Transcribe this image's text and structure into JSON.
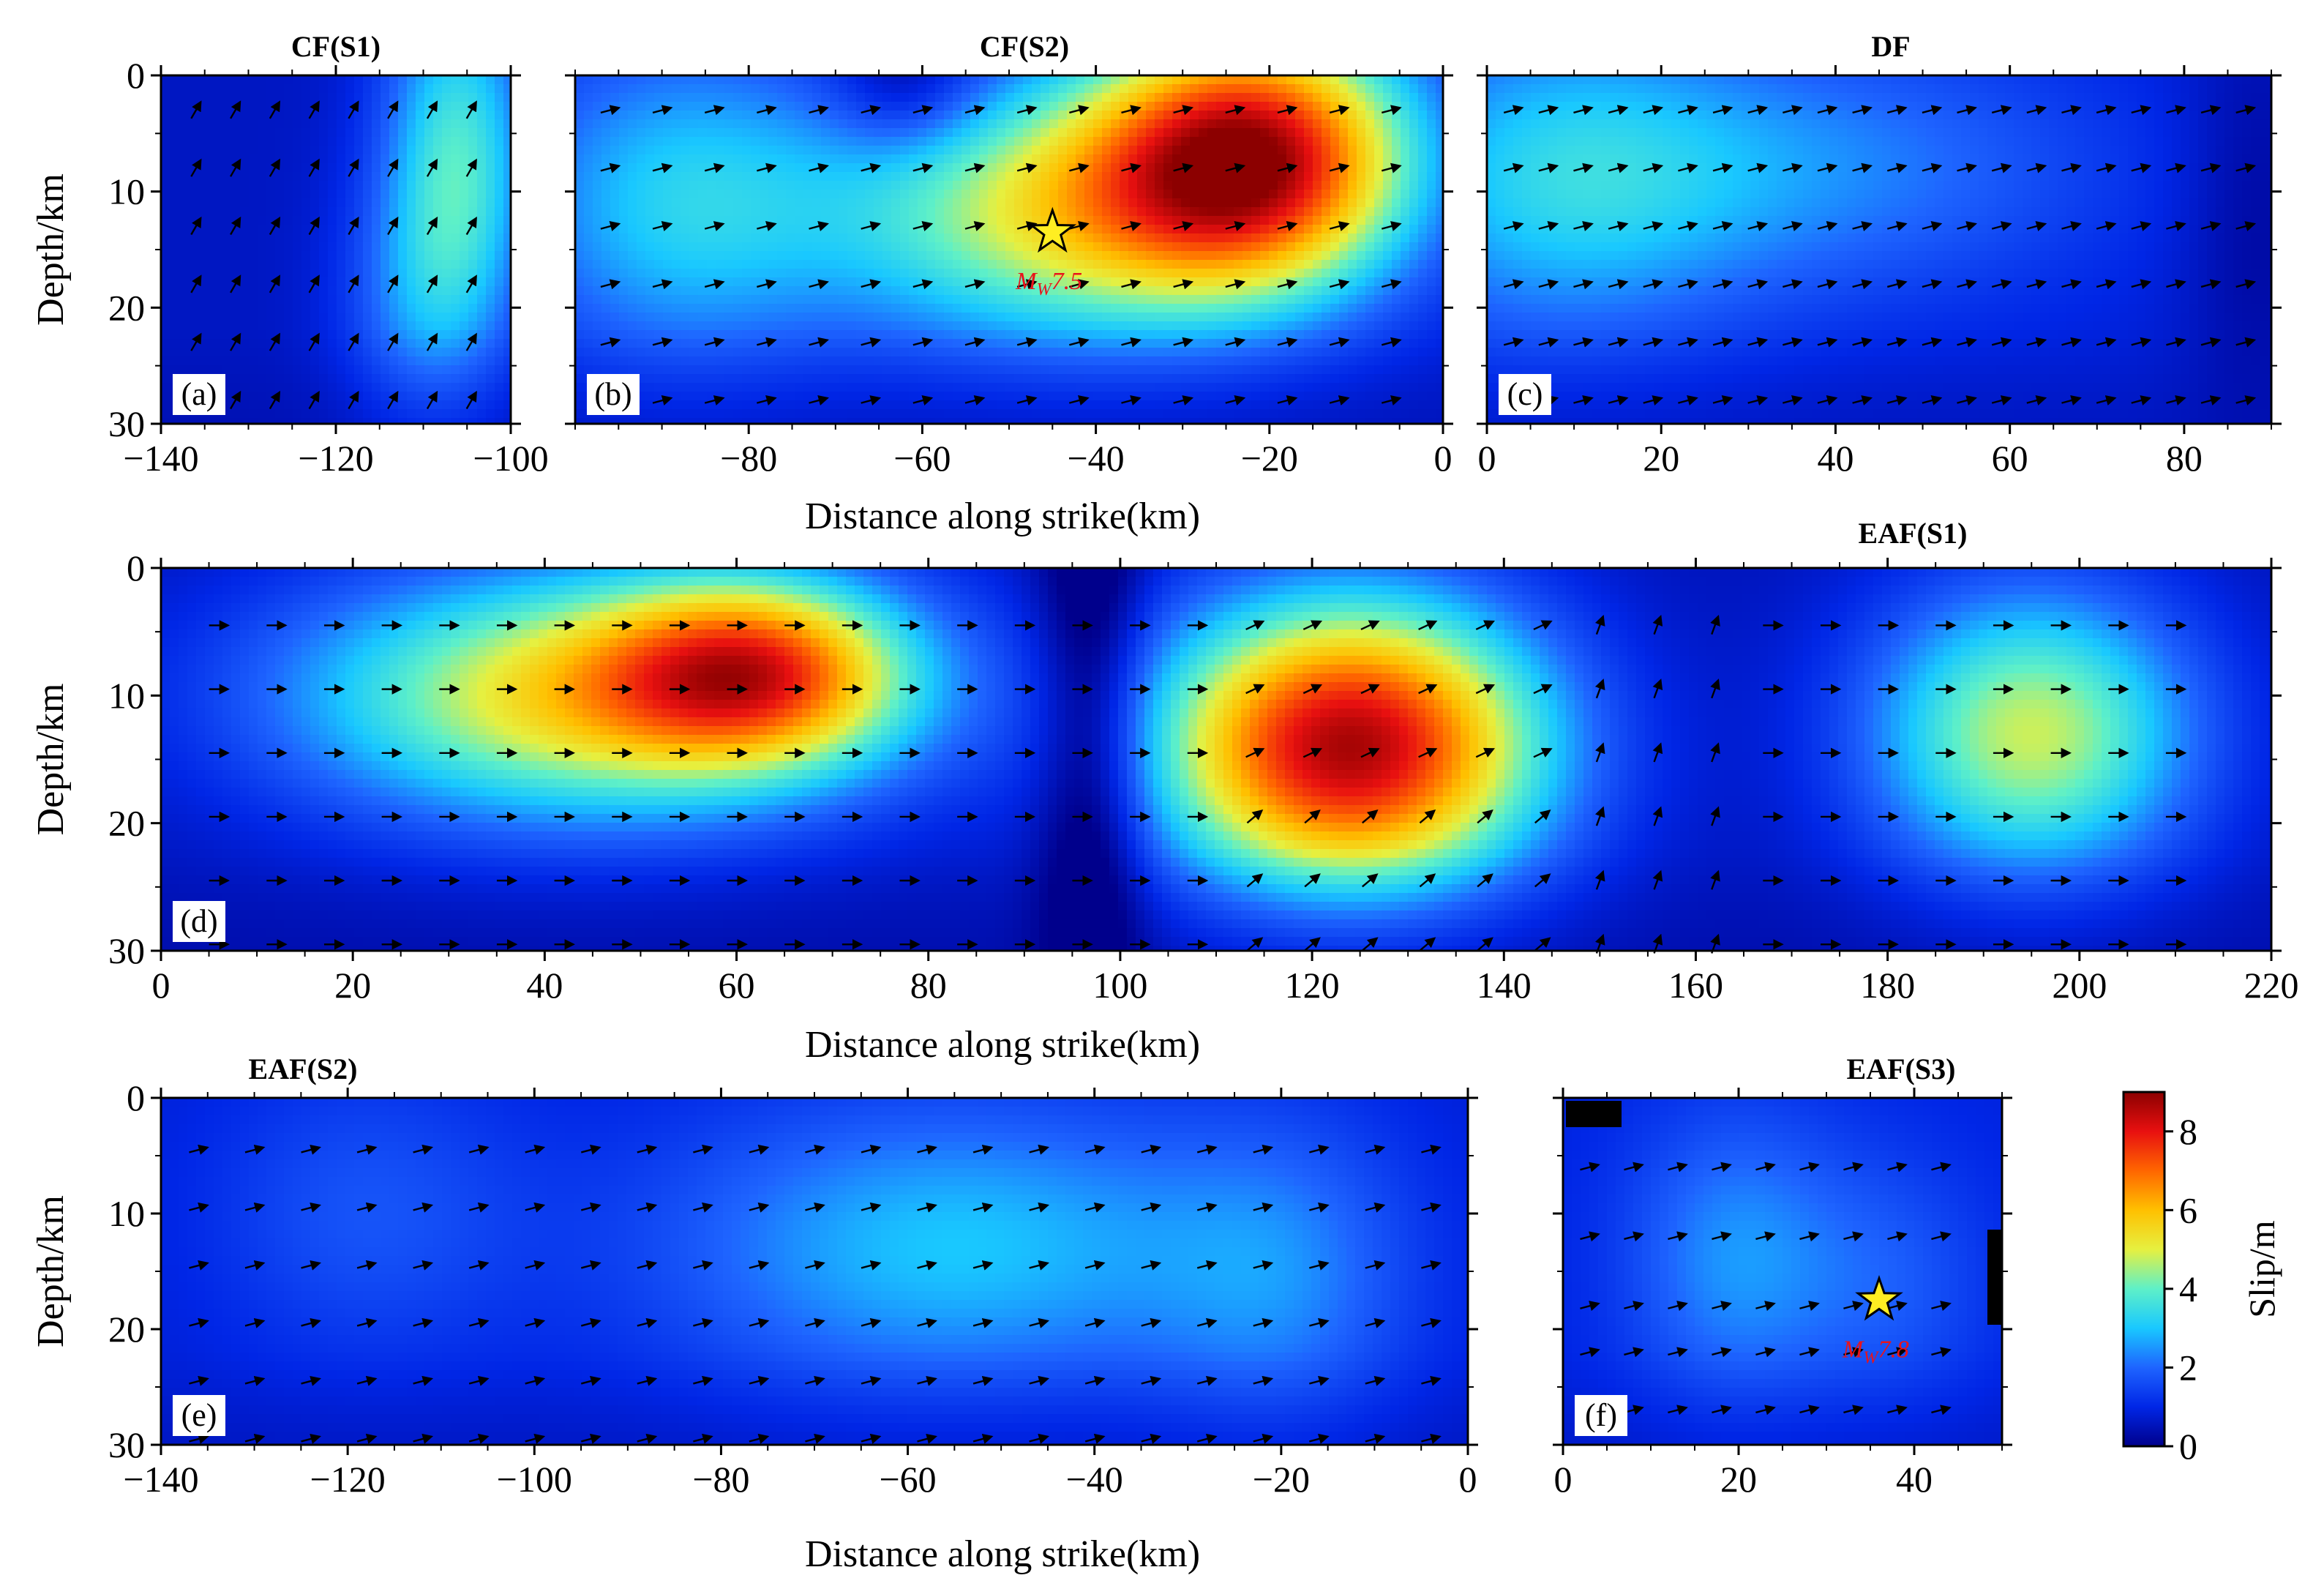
{
  "colormap": {
    "stops": [
      {
        "v": 0,
        "color": "#00008c"
      },
      {
        "v": 1,
        "color": "#0026e6"
      },
      {
        "v": 2,
        "color": "#1e64ff"
      },
      {
        "v": 3,
        "color": "#19c8ff"
      },
      {
        "v": 4,
        "color": "#5ef0c8"
      },
      {
        "v": 5,
        "color": "#e6f040"
      },
      {
        "v": 6,
        "color": "#ffc000"
      },
      {
        "v": 7,
        "color": "#ff6600"
      },
      {
        "v": 8,
        "color": "#e81010"
      },
      {
        "v": 9,
        "color": "#8c0000"
      }
    ]
  },
  "colorbar": {
    "label": "Slip/m",
    "range": [
      0,
      9
    ],
    "ticks": [
      0,
      2,
      4,
      6,
      8
    ],
    "tick_labels": [
      "0",
      "2",
      "4",
      "6",
      "8"
    ]
  },
  "shared_labels": {
    "xlabel": "Distance along strike(km)",
    "ylabel": "Depth/km"
  },
  "chart_data": [
    {
      "id": "a",
      "type": "heatmap",
      "title": "CF(S1)",
      "tag": "(a)",
      "xlim": [
        -140,
        -100
      ],
      "ylim": [
        0,
        30
      ],
      "y_inverted": true,
      "xticks": [
        -140,
        -120,
        -100
      ],
      "xtick_labels": [
        "−140",
        "−120",
        "−100"
      ],
      "yticks": [
        0,
        10,
        20,
        30
      ],
      "ytick_labels": [
        "0",
        "10",
        "20",
        "30"
      ],
      "show_xlabel": false,
      "show_ylabel": true,
      "background_slip": 0.6,
      "slip_patches": [
        {
          "x": -106,
          "z": 8,
          "sx": 6,
          "sz": 12,
          "slip": 3.2
        },
        {
          "x": -112,
          "z": 20,
          "sx": 6,
          "sz": 8,
          "slip": 1.0
        }
      ],
      "rake_vectors": {
        "x_start": -136,
        "x_end": -104,
        "dx": 4.5,
        "depths": [
          3,
          8,
          13,
          18,
          23,
          28
        ],
        "angle_deg": 60,
        "length": 1.0
      },
      "hypocenter": null
    },
    {
      "id": "b",
      "type": "heatmap",
      "title": "CF(S2)",
      "tag": "(b)",
      "xlim": [
        -100,
        0
      ],
      "ylim": [
        0,
        30
      ],
      "y_inverted": true,
      "xticks": [
        -80,
        -60,
        -40,
        -20,
        0
      ],
      "xtick_labels": [
        "−80",
        "−60",
        "−40",
        "−20",
        "0"
      ],
      "yticks": [
        0,
        10,
        20,
        30
      ],
      "ytick_labels": [
        "",
        "",
        "",
        ""
      ],
      "show_xlabel": true,
      "show_ylabel": false,
      "background_slip": 0.7,
      "slip_patches": [
        {
          "x": -22,
          "z": 7,
          "sx": 13,
          "sz": 8,
          "slip": 7.4
        },
        {
          "x": -45,
          "z": 12,
          "sx": 18,
          "sz": 8,
          "slip": 4.0
        },
        {
          "x": -88,
          "z": 11,
          "sx": 14,
          "sz": 10,
          "slip": 2.4
        },
        {
          "x": -62,
          "z": 1,
          "sx": 6,
          "sz": 4,
          "slip": -1.2
        }
      ],
      "rake_vectors": {
        "x_start": -96,
        "x_end": -4,
        "dx": 6,
        "depths": [
          3,
          8,
          13,
          18,
          23,
          28
        ],
        "angle_deg": -15,
        "length": 1.0
      },
      "hypocenter": {
        "x": -45,
        "z": 13.5,
        "label_prefix": "M",
        "label_sub": "W",
        "label_mag": "7.5"
      }
    },
    {
      "id": "c",
      "type": "heatmap",
      "title": "DF",
      "tag": "(c)",
      "xlim": [
        0,
        90
      ],
      "ylim": [
        0,
        30
      ],
      "y_inverted": true,
      "xticks": [
        0,
        20,
        40,
        60,
        80
      ],
      "xtick_labels": [
        "0",
        "20",
        "40",
        "60",
        "80"
      ],
      "yticks": [
        0,
        10,
        20,
        30
      ],
      "ytick_labels": [
        "",
        "",
        "",
        ""
      ],
      "show_xlabel": false,
      "show_ylabel": false,
      "background_slip": 0.8,
      "slip_patches": [
        {
          "x": 8,
          "z": 9,
          "sx": 16,
          "sz": 10,
          "slip": 2.2
        },
        {
          "x": 40,
          "z": 8,
          "sx": 22,
          "sz": 8,
          "slip": 1.4
        },
        {
          "x": 88,
          "z": 12,
          "sx": 6,
          "sz": 14,
          "slip": -0.6
        }
      ],
      "rake_vectors": {
        "x_start": 3,
        "x_end": 87,
        "dx": 4,
        "depths": [
          3,
          8,
          13,
          18,
          23,
          28
        ],
        "angle_deg": -15,
        "length": 1.0
      },
      "hypocenter": null
    },
    {
      "id": "d",
      "type": "heatmap",
      "title": "EAF(S1)",
      "tag": "(d)",
      "xlim": [
        0,
        220
      ],
      "ylim": [
        0,
        30
      ],
      "y_inverted": true,
      "xticks": [
        0,
        20,
        40,
        60,
        80,
        100,
        120,
        140,
        160,
        180,
        200,
        220
      ],
      "xtick_labels": [
        "0",
        "20",
        "40",
        "60",
        "80",
        "100",
        "120",
        "140",
        "160",
        "180",
        "200",
        "220"
      ],
      "yticks": [
        0,
        10,
        20,
        30
      ],
      "ytick_labels": [
        "0",
        "10",
        "20",
        "30"
      ],
      "show_xlabel": true,
      "show_ylabel": true,
      "background_slip": 0.5,
      "slip_patches": [
        {
          "x": 62,
          "z": 8,
          "sx": 11,
          "sz": 5,
          "slip": 4.6
        },
        {
          "x": 45,
          "z": 10,
          "sx": 22,
          "sz": 7,
          "slip": 5.0
        },
        {
          "x": 124,
          "z": 14,
          "sx": 14,
          "sz": 8,
          "slip": 8.2
        },
        {
          "x": 195,
          "z": 13,
          "sx": 12,
          "sz": 8,
          "slip": 4.3
        },
        {
          "x": 97,
          "z": 14,
          "sx": 4,
          "sz": 20,
          "slip": -1.6
        }
      ],
      "rake_vectors": {
        "x_start": 6,
        "x_end": 214,
        "dx": 6,
        "depths": [
          4.5,
          9.5,
          14.5,
          19.5,
          24.5,
          29.5
        ],
        "angle_deg": 0,
        "length": 1.0
      },
      "hypocenter": null
    },
    {
      "id": "e",
      "type": "heatmap",
      "title": "EAF(S2)",
      "tag": "(e)",
      "xlim": [
        -140,
        0
      ],
      "ylim": [
        0,
        30
      ],
      "y_inverted": true,
      "xticks": [
        -140,
        -120,
        -100,
        -80,
        -60,
        -40,
        -20,
        0
      ],
      "xtick_labels": [
        "−140",
        "−120",
        "−100",
        "−80",
        "−60",
        "−40",
        "−20",
        "0"
      ],
      "yticks": [
        0,
        10,
        20,
        30
      ],
      "ytick_labels": [
        "0",
        "10",
        "20",
        "30"
      ],
      "show_xlabel": true,
      "show_ylabel": true,
      "background_slip": 0.8,
      "slip_patches": [
        {
          "x": -55,
          "z": 13,
          "sx": 22,
          "sz": 9,
          "slip": 2.2
        },
        {
          "x": -118,
          "z": 10,
          "sx": 12,
          "sz": 9,
          "slip": 0.9
        },
        {
          "x": -20,
          "z": 16,
          "sx": 10,
          "sz": 10,
          "slip": 1.2
        }
      ],
      "rake_vectors": {
        "x_start": -136,
        "x_end": -4,
        "dx": 6,
        "depths": [
          4.5,
          9.5,
          14.5,
          19.5,
          24.5,
          29.5
        ],
        "angle_deg": -15,
        "length": 1.0
      },
      "hypocenter": null
    },
    {
      "id": "f",
      "type": "heatmap",
      "title": "EAF(S3)",
      "tag": "(f)",
      "xlim": [
        0,
        50
      ],
      "ylim": [
        0,
        30
      ],
      "y_inverted": true,
      "xticks": [
        0,
        20,
        40
      ],
      "xtick_labels": [
        "0",
        "20",
        "40"
      ],
      "yticks": [
        0,
        10,
        20,
        30
      ],
      "ytick_labels": [
        "",
        "",
        "",
        ""
      ],
      "show_xlabel": false,
      "show_ylabel": false,
      "background_slip": 0.9,
      "slip_patches": [
        {
          "x": 20,
          "z": 14,
          "sx": 9,
          "sz": 9,
          "slip": 1.6
        },
        {
          "x": 38,
          "z": 16,
          "sx": 8,
          "sz": 8,
          "slip": 0.8
        }
      ],
      "rake_vectors": {
        "x_start": 3,
        "x_end": 47,
        "dx": 5,
        "depths": [
          6,
          12,
          18,
          22,
          27
        ],
        "angle_deg": -15,
        "length": 1.0
      },
      "hypocenter": {
        "x": 36,
        "z": 17.5,
        "label_prefix": "M",
        "label_sub": "W",
        "label_mag": "7.8"
      }
    }
  ]
}
